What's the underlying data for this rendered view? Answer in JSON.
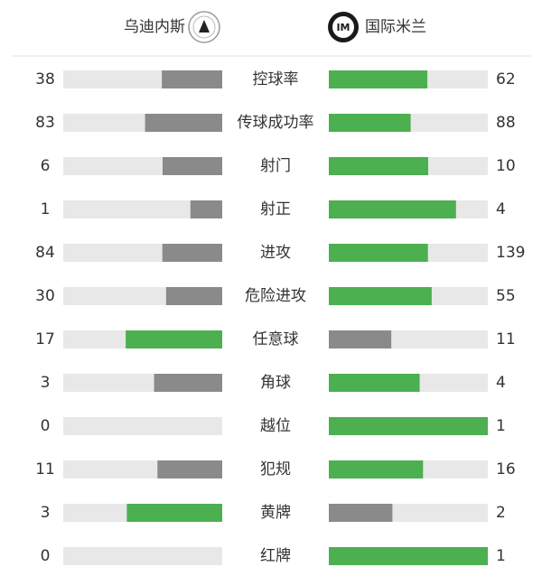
{
  "header": {
    "home": "乌迪内斯",
    "away": "国际米兰"
  },
  "rows": [
    {
      "label": "控球率",
      "home": 38,
      "away": 62
    },
    {
      "label": "传球成功率",
      "home": 83,
      "away": 88
    },
    {
      "label": "射门",
      "home": 6,
      "away": 10
    },
    {
      "label": "射正",
      "home": 1,
      "away": 4
    },
    {
      "label": "进攻",
      "home": 84,
      "away": 139
    },
    {
      "label": "危险进攻",
      "home": 30,
      "away": 55
    },
    {
      "label": "任意球",
      "home": 17,
      "away": 11
    },
    {
      "label": "角球",
      "home": 3,
      "away": 4
    },
    {
      "label": "越位",
      "home": 0,
      "away": 1
    },
    {
      "label": "犯规",
      "home": 11,
      "away": 16
    },
    {
      "label": "黄牌",
      "home": 3,
      "away": 2
    },
    {
      "label": "红牌",
      "home": 0,
      "away": 1
    }
  ]
}
